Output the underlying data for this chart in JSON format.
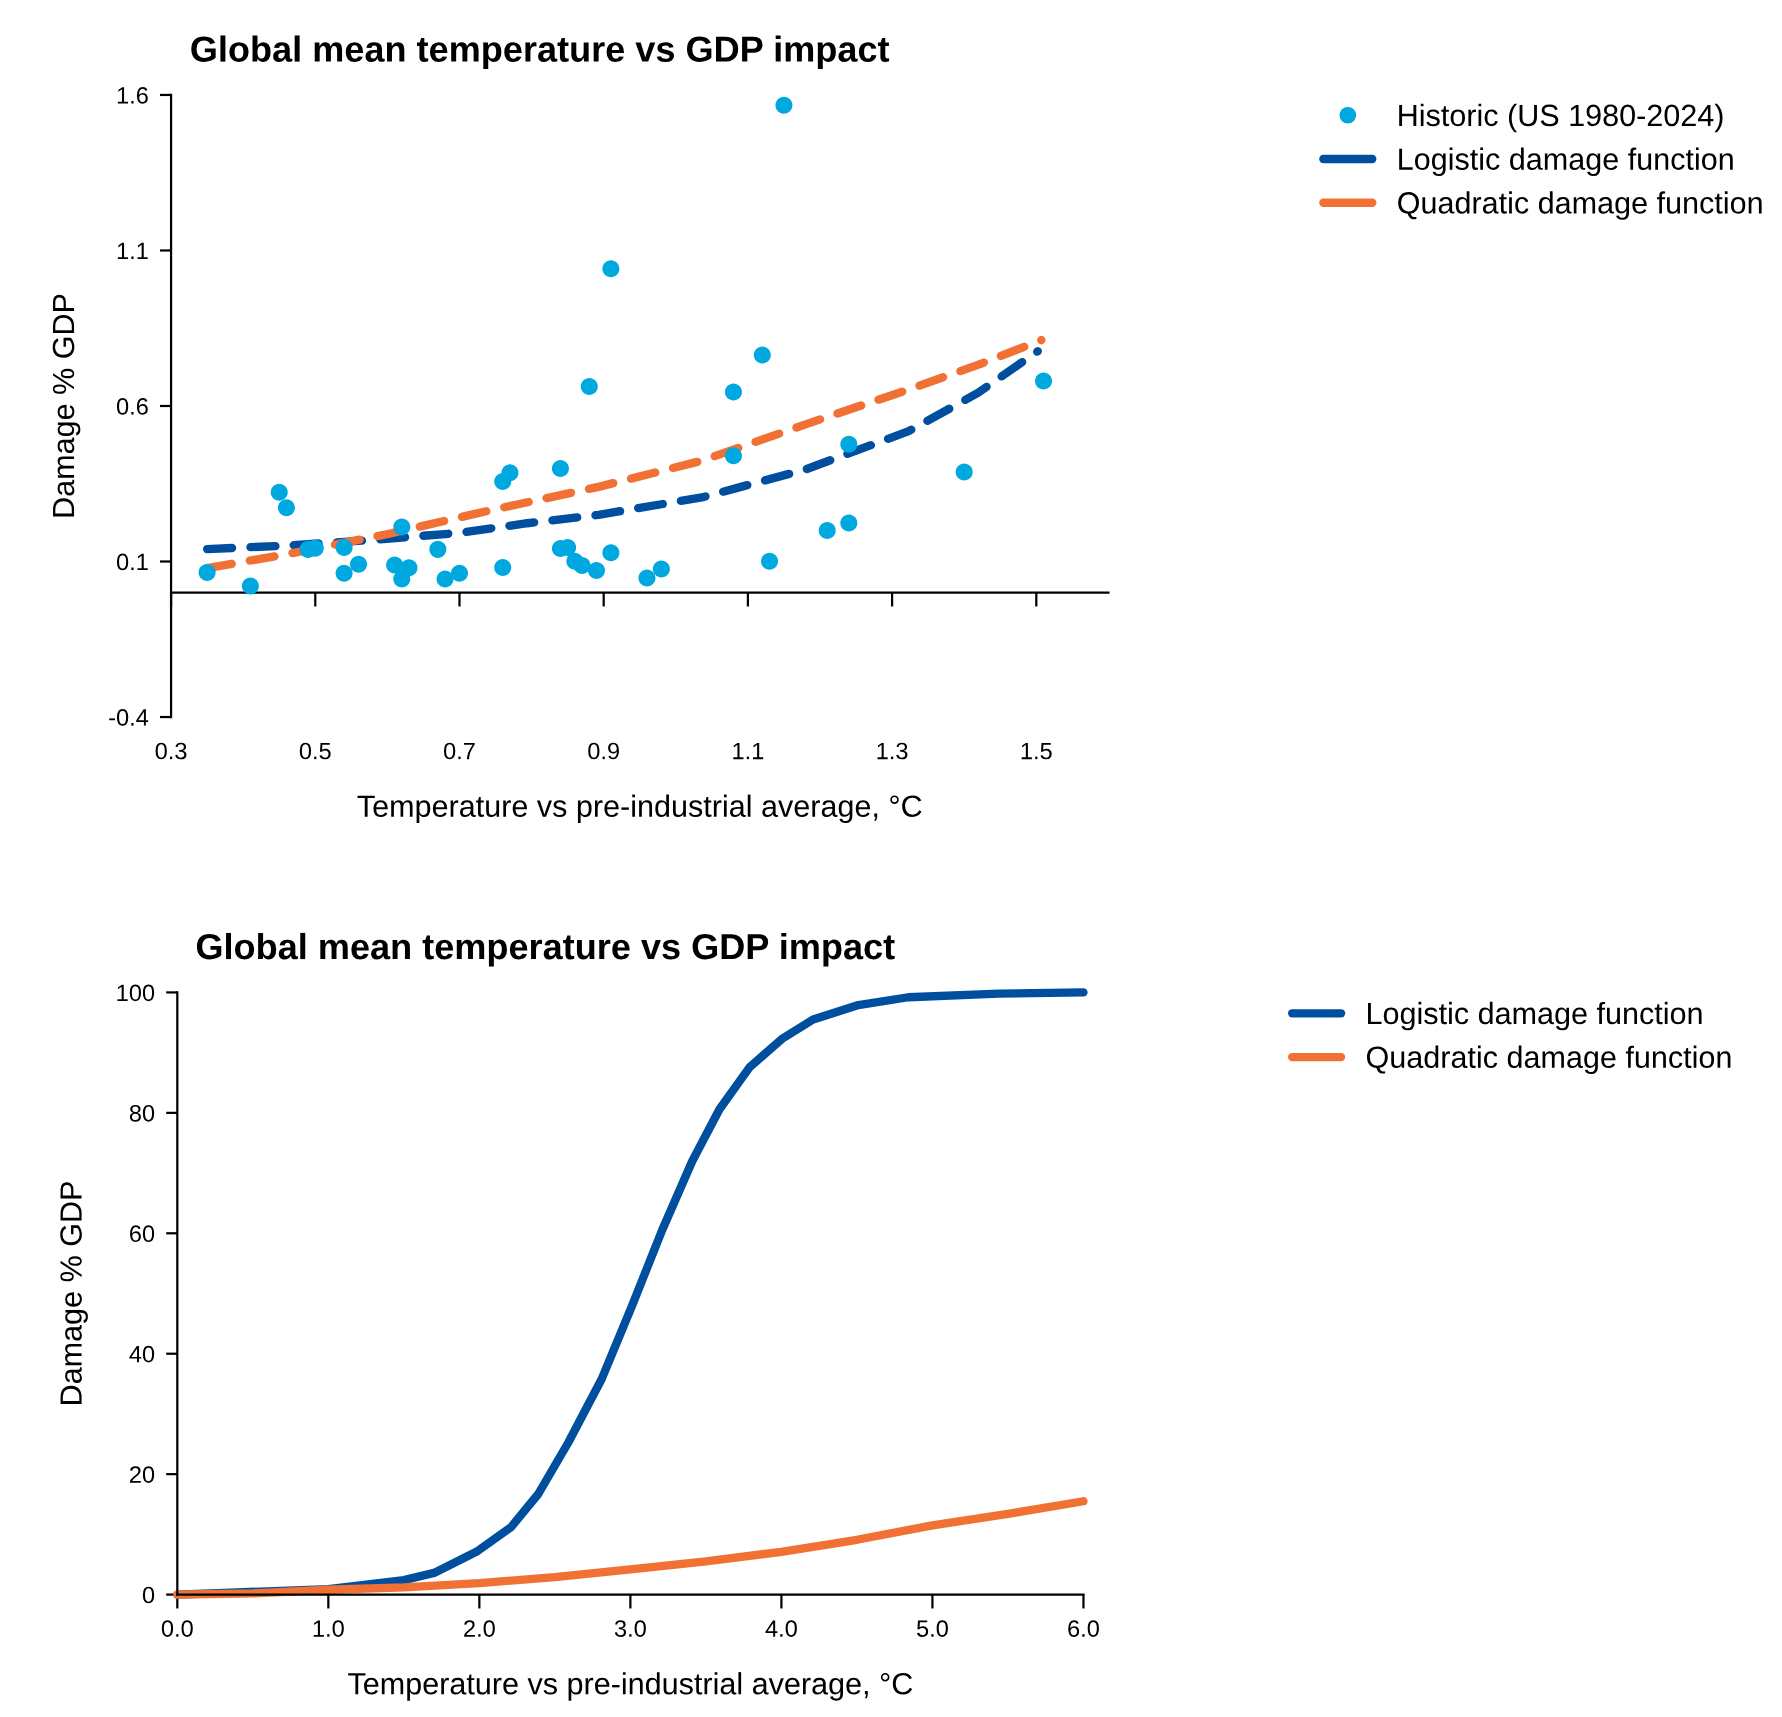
{
  "chart_data": [
    {
      "type": "scatter",
      "title": "Global mean temperature vs GDP impact",
      "xlabel": "Temperature vs pre-industrial average, °C",
      "ylabel": "Damage % GDP",
      "xlim": [
        0.3,
        1.6
      ],
      "ylim": [
        -0.4,
        1.6
      ],
      "xticks": [
        0.3,
        0.5,
        0.7,
        0.9,
        1.1,
        1.3,
        1.5
      ],
      "yticks": [
        -0.4,
        0.1,
        0.6,
        1.1,
        1.6
      ],
      "grid": false,
      "legend": "top right",
      "series": [
        {
          "name": "Historic (US 1980-2024)",
          "marker": "circle",
          "color": "#00a8e0",
          "x": [
            0.35,
            0.41,
            0.45,
            0.46,
            0.49,
            0.5,
            0.54,
            0.54,
            0.56,
            0.61,
            0.62,
            0.62,
            0.63,
            0.67,
            0.68,
            0.7,
            0.76,
            0.77,
            0.76,
            0.84,
            0.84,
            0.85,
            0.86,
            0.87,
            0.89,
            0.91,
            0.91,
            0.88,
            1.15,
            1.12,
            1.08,
            1.08,
            1.24,
            1.4,
            1.51,
            1.21,
            1.24,
            1.13,
            0.96,
            0.98
          ],
          "values": [
            0.065,
            0.021,
            0.323,
            0.273,
            0.139,
            0.143,
            0.145,
            0.062,
            0.091,
            0.089,
            0.211,
            0.044,
            0.08,
            0.139,
            0.044,
            0.062,
            0.357,
            0.385,
            0.081,
            0.399,
            0.142,
            0.145,
            0.101,
            0.087,
            0.071,
            1.041,
            0.128,
            0.663,
            1.567,
            0.764,
            0.645,
            0.44,
            0.477,
            0.388,
            0.68,
            0.2,
            0.224,
            0.101,
            0.047,
            0.076
          ]
        },
        {
          "name": "Logistic damage function",
          "type": "line",
          "line_style": "dashed",
          "marker": "none",
          "color": "#004f9f",
          "x": [
            0.35,
            0.46,
            0.565,
            0.7,
            0.794,
            0.893,
            1.036,
            1.18,
            1.323,
            1.419,
            1.502
          ],
          "values": [
            0.14,
            0.151,
            0.167,
            0.192,
            0.223,
            0.25,
            0.306,
            0.396,
            0.519,
            0.642,
            0.776
          ]
        },
        {
          "name": "Quadratic damage function",
          "type": "line",
          "line_style": "dashed",
          "marker": "none",
          "color": "#f07133",
          "x": [
            0.35,
            0.46,
            0.604,
            0.747,
            0.893,
            1.036,
            1.18,
            1.323,
            1.419,
            1.507
          ],
          "values": [
            0.079,
            0.123,
            0.19,
            0.267,
            0.34,
            0.424,
            0.541,
            0.653,
            0.732,
            0.812
          ]
        }
      ]
    },
    {
      "type": "line",
      "title": "Global mean temperature vs GDP impact",
      "xlabel": "Temperature vs pre-industrial average, °C",
      "ylabel": "Damage % GDP",
      "xlim": [
        0,
        6
      ],
      "ylim": [
        0,
        100
      ],
      "xticks": [
        {
          "value": 0,
          "label": "0.0"
        },
        {
          "value": 1,
          "label": "1.0"
        },
        {
          "value": 2,
          "label": "2.0"
        },
        {
          "value": 3,
          "label": "3.0"
        },
        {
          "value": 4,
          "label": "4.0"
        },
        {
          "value": 5,
          "label": "5.0"
        },
        {
          "value": 6,
          "label": "6.0"
        }
      ],
      "yticks": [
        0,
        20,
        40,
        60,
        80,
        100
      ],
      "grid": false,
      "legend": "top right",
      "series": [
        {
          "name": "Logistic damage function",
          "line_style": "solid",
          "marker": "none",
          "color": "#004f9f",
          "x": [
            0,
            1.0,
            1.5,
            1.7,
            1.98,
            2.21,
            2.39,
            2.59,
            2.81,
            3.01,
            3.21,
            3.41,
            3.59,
            3.79,
            4.01,
            4.21,
            4.51,
            4.84,
            5.44,
            6
          ],
          "values": [
            0,
            0.9,
            2.4,
            3.6,
            7.1,
            11.2,
            16.7,
            25.3,
            35.8,
            47.9,
            60.5,
            72.0,
            80.6,
            87.6,
            92.4,
            95.5,
            97.9,
            99.2,
            99.8,
            100
          ]
        },
        {
          "name": "Quadratic damage function",
          "line_style": "solid",
          "marker": "none",
          "color": "#f07133",
          "x": [
            0,
            0.5,
            1,
            1.5,
            2,
            2.5,
            3,
            3.5,
            4,
            4.5,
            5,
            5.5,
            6
          ],
          "values": [
            0,
            0.2,
            0.8,
            1.2,
            1.9,
            2.9,
            4.2,
            5.5,
            7.1,
            9.1,
            11.5,
            13.4,
            15.5
          ]
        }
      ]
    }
  ]
}
